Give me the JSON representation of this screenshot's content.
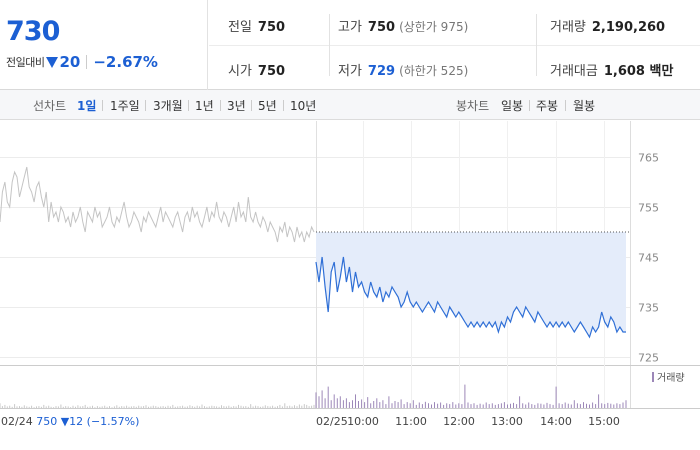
{
  "summary": {
    "current_price": "730",
    "change_label": "전일대비",
    "change_amount": "20",
    "change_percent": "−2.67%",
    "change_direction": "down",
    "stats": {
      "prev_close": {
        "label": "전일",
        "value": "750"
      },
      "open": {
        "label": "시가",
        "value": "750"
      },
      "high": {
        "label": "고가",
        "value": "750",
        "sub": "(상한가 975)"
      },
      "low": {
        "label": "저가",
        "value": "729",
        "sub": "(하한가 525)"
      },
      "volume": {
        "label": "거래량",
        "value": "2,190,260"
      },
      "trade_value": {
        "label": "거래대금",
        "value": "1,608 백만"
      }
    }
  },
  "toolbar": {
    "line_chart_label": "선차트",
    "periods": [
      "1일",
      "1주일",
      "3개월",
      "1년",
      "3년",
      "5년",
      "10년"
    ],
    "active_period": "1일",
    "candle_chart_label": "봉차트",
    "candle_periods": [
      "일봉",
      "주봉",
      "월봉"
    ]
  },
  "colors": {
    "accent_blue": "#1c5fd3",
    "prev_day_line": "#c4c4c4",
    "today_line": "#2f6fd6",
    "fill": "#e4ecfa",
    "volume_bar": "#9c87b8"
  },
  "chart_data": {
    "type": "line",
    "ylim": [
      724,
      766
    ],
    "y_ticks": [
      765,
      755,
      745,
      735,
      725
    ],
    "reference_price": 750,
    "x_ticks": [
      "02/24",
      "02/25",
      "10:00",
      "11:00",
      "12:00",
      "13:00",
      "14:00",
      "15:00"
    ],
    "footer": {
      "date": "02/24",
      "close": "750",
      "change": "▼12",
      "pct": "(−1.57%)"
    },
    "volume_legend": "거래량",
    "series": [
      {
        "day": "02/24",
        "values": [
          752,
          758,
          760,
          756,
          755,
          760,
          762,
          761,
          757,
          759,
          761,
          763,
          759,
          758,
          756,
          759,
          760,
          757,
          755,
          758,
          752,
          756,
          753,
          754,
          752,
          755,
          754,
          752,
          753,
          751,
          754,
          752,
          753,
          755,
          752,
          750,
          754,
          753,
          752,
          755,
          753,
          754,
          751,
          752,
          753,
          755,
          752,
          751,
          753,
          752,
          754,
          756,
          753,
          751,
          752,
          754,
          753,
          752,
          750,
          753,
          752,
          754,
          753,
          752,
          751,
          753,
          755,
          752,
          754,
          753,
          752,
          751,
          753,
          754,
          752,
          750,
          753,
          754,
          752,
          755,
          753,
          754,
          752,
          751,
          753,
          755,
          752,
          754,
          753,
          756,
          753,
          752,
          754,
          753,
          751,
          753,
          755,
          752,
          756,
          753,
          754,
          752,
          757,
          753,
          752,
          754,
          752,
          751,
          753,
          752,
          750,
          752,
          751,
          750,
          748,
          751,
          750,
          752,
          749,
          751,
          750,
          748,
          751,
          749,
          750,
          748,
          750,
          749,
          751,
          750
        ]
      },
      {
        "day": "02/25",
        "values": [
          744,
          740,
          745,
          739,
          734,
          742,
          744,
          738,
          741,
          745,
          740,
          743,
          738,
          742,
          739,
          740,
          738,
          737,
          740,
          738,
          737,
          739,
          736,
          738,
          737,
          739,
          738,
          737,
          735,
          736,
          738,
          736,
          735,
          736,
          735,
          734,
          735,
          736,
          735,
          734,
          736,
          735,
          734,
          733,
          735,
          734,
          733,
          734,
          733,
          732,
          731,
          732,
          731,
          732,
          731,
          732,
          731,
          732,
          731,
          732,
          730,
          732,
          731,
          733,
          732,
          734,
          735,
          734,
          733,
          735,
          734,
          733,
          732,
          734,
          733,
          732,
          731,
          732,
          731,
          732,
          731,
          732,
          731,
          732,
          731,
          730,
          731,
          732,
          731,
          730,
          729,
          731,
          730,
          731,
          734,
          732,
          731,
          733,
          732,
          730,
          731,
          730,
          730
        ]
      }
    ],
    "volume": {
      "ylim": [
        0,
        100
      ],
      "prev_day": [
        12,
        5,
        8,
        4,
        6,
        3,
        10,
        4,
        5,
        3,
        7,
        4,
        3,
        6,
        2,
        4,
        5,
        3,
        8,
        4,
        6,
        3,
        2,
        5,
        4,
        9,
        3,
        5,
        4,
        2,
        6,
        3,
        7,
        4,
        5,
        8,
        3,
        4,
        6,
        2,
        5,
        3,
        4,
        6,
        3,
        5,
        2,
        4,
        7,
        3,
        5,
        4,
        6,
        3,
        4,
        5,
        3,
        6,
        4,
        5,
        7,
        3,
        4,
        6,
        5,
        3,
        4,
        5,
        3,
        6,
        4,
        8,
        3,
        4,
        5,
        6,
        3,
        4,
        7,
        5,
        3,
        6,
        4,
        9,
        5,
        3,
        4,
        6,
        5,
        4,
        3,
        7,
        5,
        4,
        6,
        3,
        5,
        4,
        8,
        6,
        4,
        5,
        3,
        10,
        4,
        6,
        5,
        3,
        4,
        7,
        5,
        4,
        6,
        3,
        5,
        8,
        4,
        12,
        5,
        6,
        4,
        7,
        5,
        9,
        6,
        10,
        8,
        5,
        6,
        8
      ],
      "today": [
        40,
        30,
        45,
        25,
        55,
        20,
        35,
        25,
        30,
        20,
        25,
        15,
        20,
        35,
        18,
        22,
        15,
        28,
        12,
        18,
        25,
        15,
        20,
        10,
        30,
        12,
        18,
        15,
        22,
        10,
        15,
        12,
        20,
        8,
        14,
        10,
        16,
        12,
        9,
        15,
        11,
        14,
        8,
        12,
        10,
        15,
        9,
        12,
        10,
        60,
        14,
        10,
        12,
        8,
        11,
        9,
        14,
        10,
        12,
        8,
        10,
        12,
        15,
        9,
        11,
        13,
        10,
        30,
        12,
        9,
        14,
        10,
        8,
        12,
        11,
        9,
        13,
        10,
        8,
        55,
        12,
        10,
        14,
        11,
        9,
        20,
        12,
        10,
        15,
        11,
        9,
        14,
        10,
        35,
        12,
        10,
        13,
        11,
        9,
        12,
        10,
        14,
        20
      ]
    }
  }
}
